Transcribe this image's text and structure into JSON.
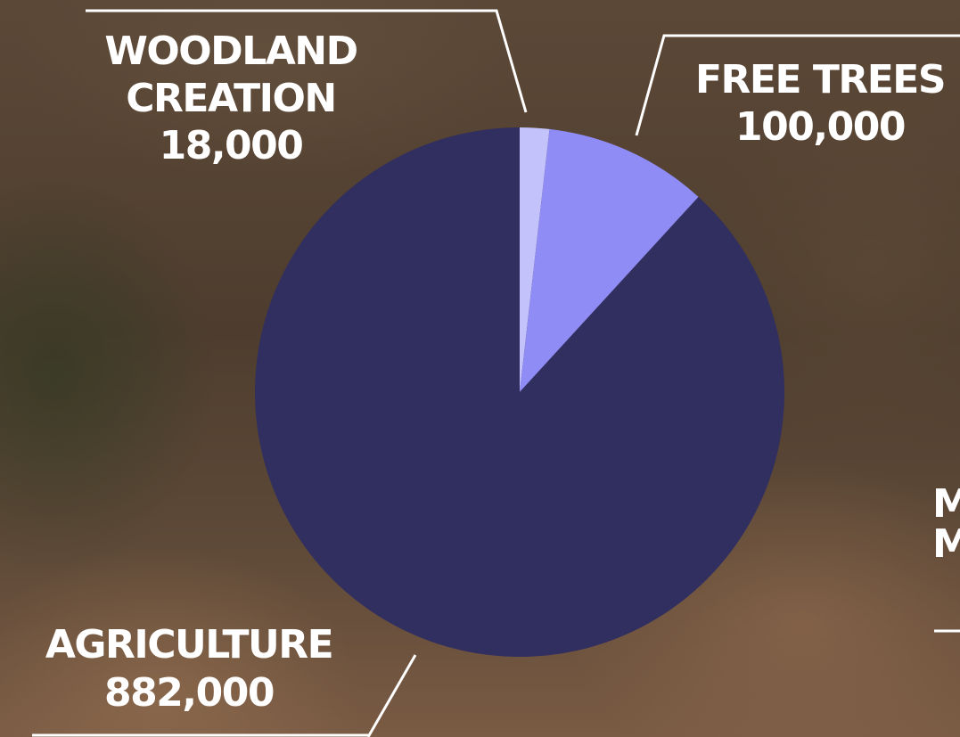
{
  "chart_data": {
    "type": "pie",
    "title": "",
    "slices": [
      {
        "label": "WOODLAND CREATION",
        "value_text": "18,000",
        "value": 18000,
        "color": "#c4c2fb"
      },
      {
        "label": "FREE TREES",
        "value_text": "100,000",
        "value": 100000,
        "color": "#8f8cf6"
      },
      {
        "label": "AGRICULTURE",
        "value_text": "882,000",
        "value": 882000,
        "color": "#312f60"
      }
    ],
    "partially_visible_label_fragment": "M",
    "legend": "none"
  }
}
